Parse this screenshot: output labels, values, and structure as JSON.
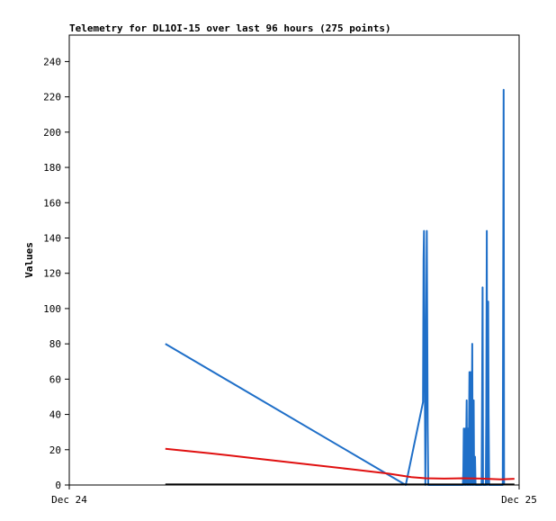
{
  "chart_data": {
    "type": "line",
    "title": "Telemetry for DL1OI-15 over last 96 hours (275 points)",
    "xlabel": "",
    "ylabel": "Values",
    "xlim": [
      0,
      96
    ],
    "ylim": [
      0,
      255
    ],
    "y_ticks": [
      0,
      20,
      40,
      60,
      80,
      100,
      120,
      140,
      160,
      180,
      200,
      220,
      240
    ],
    "x_ticks": [
      {
        "x": 0,
        "label": "Dec 24"
      },
      {
        "x": 96,
        "label": "Dec 25"
      }
    ],
    "grid": false,
    "legend": "none",
    "series": [
      {
        "color": "#1f6fc8",
        "points": [
          [
            20.5,
            80
          ],
          [
            71.8,
            0
          ],
          [
            75.5,
            47
          ],
          [
            75.6,
            128
          ],
          [
            75.7,
            144
          ],
          [
            76.0,
            0
          ],
          [
            76.3,
            144
          ],
          [
            76.5,
            32
          ],
          [
            76.6,
            0
          ],
          [
            84.0,
            0
          ],
          [
            84.1,
            8
          ],
          [
            84.2,
            32
          ],
          [
            84.3,
            0
          ],
          [
            84.5,
            32
          ],
          [
            84.6,
            0
          ],
          [
            84.8,
            48
          ],
          [
            84.9,
            0
          ],
          [
            85.1,
            32
          ],
          [
            85.2,
            0
          ],
          [
            85.4,
            64
          ],
          [
            85.5,
            0
          ],
          [
            85.7,
            64
          ],
          [
            85.8,
            0
          ],
          [
            86.0,
            80
          ],
          [
            86.1,
            0
          ],
          [
            86.3,
            48
          ],
          [
            86.4,
            0
          ],
          [
            86.6,
            16
          ],
          [
            86.7,
            0
          ],
          [
            88.0,
            0
          ],
          [
            88.1,
            56
          ],
          [
            88.2,
            112
          ],
          [
            88.3,
            0
          ],
          [
            88.9,
            0
          ],
          [
            89.0,
            40
          ],
          [
            89.1,
            144
          ],
          [
            89.2,
            0
          ],
          [
            89.4,
            104
          ],
          [
            89.5,
            40
          ],
          [
            89.6,
            0
          ],
          [
            92.5,
            0
          ],
          [
            92.6,
            112
          ],
          [
            92.7,
            224
          ],
          [
            92.8,
            0
          ]
        ]
      },
      {
        "color": "#e01010",
        "points": [
          [
            20.5,
            20.5
          ],
          [
            30,
            18
          ],
          [
            40,
            15
          ],
          [
            50,
            12
          ],
          [
            60,
            9
          ],
          [
            68,
            6.5
          ],
          [
            73,
            4.5
          ],
          [
            76,
            3.8
          ],
          [
            80,
            3.6
          ],
          [
            84,
            3.8
          ],
          [
            88,
            3.6
          ],
          [
            92,
            3.2
          ],
          [
            95,
            3.5
          ]
        ]
      },
      {
        "color": "#000000",
        "points": [
          [
            20.5,
            0.3
          ],
          [
            95,
            0.3
          ]
        ]
      }
    ]
  }
}
